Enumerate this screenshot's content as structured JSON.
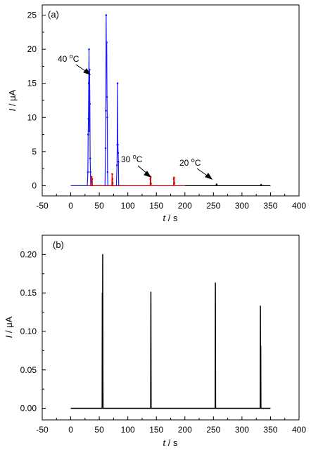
{
  "chart_data": [
    {
      "type": "line",
      "panel_label": "(a)",
      "xlabel_italic": "t",
      "xlabel_unit": " / s",
      "ylabel_italic": "I",
      "ylabel_unit": " / μA",
      "xlim": [
        -50,
        400
      ],
      "ylim": [
        -1.5,
        26.5
      ],
      "xticks": [
        -50,
        0,
        50,
        100,
        150,
        200,
        250,
        300,
        350,
        400
      ],
      "yticks": [
        0,
        5,
        10,
        15,
        20,
        25
      ],
      "series": [
        {
          "color": "#1a1aff",
          "x": [
            0,
            29,
            30,
            30.5,
            31,
            31.5,
            32,
            32.5,
            33,
            33.5,
            34,
            34.5,
            35,
            60,
            61,
            61.5,
            62,
            62.5,
            63,
            63.5,
            64,
            64.5,
            65,
            80,
            81,
            81.5,
            82,
            82.5,
            83,
            83.5,
            84,
            95
          ],
          "y": [
            0,
            0,
            2,
            7.5,
            9.8,
            15,
            20,
            8,
            17,
            12,
            4,
            2,
            0,
            0,
            5.5,
            11,
            25,
            19,
            21,
            13,
            10,
            2,
            0,
            0,
            3,
            6,
            15,
            6,
            4.8,
            3.5,
            0,
            0
          ]
        },
        {
          "color": "#e00000",
          "x": [
            30,
            36,
            36.5,
            37,
            37.5,
            38,
            72,
            72.5,
            73,
            73.5,
            74,
            139,
            139.5,
            140,
            140.5,
            141,
            180,
            180.5,
            181,
            181.5,
            182,
            200
          ],
          "y": [
            0,
            0,
            1.3,
            0.6,
            1.0,
            0,
            0,
            1.7,
            1.0,
            0.4,
            0,
            0,
            1.0,
            1.3,
            0.3,
            0,
            0,
            1.0,
            1.2,
            0.4,
            0,
            0
          ]
        },
        {
          "color": "#000000",
          "x": [
            200,
            255,
            255.5,
            256,
            333,
            333.5,
            334,
            350
          ],
          "y": [
            0,
            0,
            0.18,
            0,
            0,
            0.12,
            0,
            0
          ]
        }
      ],
      "annotations": [
        {
          "text": "40 °C",
          "at": [
            30,
            17
          ]
        },
        {
          "text": "30 °C",
          "at": [
            140,
            1.0
          ]
        },
        {
          "text": "20 °C",
          "at": [
            255,
            0.05
          ]
        }
      ]
    },
    {
      "type": "line",
      "panel_label": "(b)",
      "xlabel_italic": "t",
      "xlabel_unit": " / s",
      "ylabel_italic": "I",
      "ylabel_unit": " / μA",
      "xlim": [
        -50,
        400
      ],
      "ylim": [
        -0.015,
        0.225
      ],
      "xticks": [
        -50,
        0,
        50,
        100,
        150,
        200,
        250,
        300,
        350,
        400
      ],
      "yticks": [
        0.0,
        0.05,
        0.1,
        0.15,
        0.2
      ],
      "series": [
        {
          "color": "#000000",
          "x": [
            0,
            55,
            55.3,
            55.6,
            56,
            56.3,
            56.6,
            140,
            140.4,
            140.8,
            253,
            253.4,
            253.8,
            332,
            332.3,
            332.6,
            332.9,
            333.2,
            350
          ],
          "y": [
            0,
            0,
            0.15,
            0.02,
            0.2,
            0.05,
            0,
            0,
            0.151,
            0,
            0,
            0.163,
            0,
            0,
            0.133,
            0.01,
            0.081,
            0,
            0
          ]
        }
      ]
    }
  ]
}
